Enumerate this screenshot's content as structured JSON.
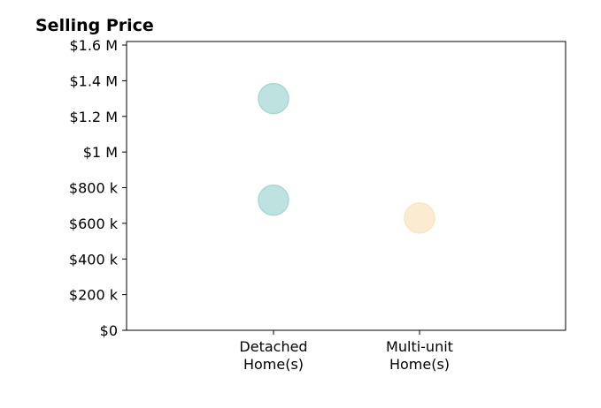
{
  "chart_data": {
    "type": "scatter",
    "title": "Selling Price",
    "xlabel": "",
    "ylabel": "",
    "categories": [
      [
        "Detached",
        "Home(s)"
      ],
      [
        "Multi-unit",
        "Home(s)"
      ]
    ],
    "ylim": [
      0,
      1620000
    ],
    "yticks": [
      0,
      200000,
      400000,
      600000,
      800000,
      1000000,
      1200000,
      1400000,
      1600000
    ],
    "ytick_labels": [
      "$0",
      "$200 k",
      "$400 k",
      "$600 k",
      "$800 k",
      "$1 M",
      "$1.2 M",
      "$1.4 M",
      "$1.6 M"
    ],
    "grid": false,
    "legend": "none",
    "points": [
      {
        "category": 0,
        "y": 1300000,
        "color": "#a8d8d4"
      },
      {
        "category": 0,
        "y": 730000,
        "color": "#a8d8d4"
      },
      {
        "category": 1,
        "y": 630000,
        "color": "#f9e6c2"
      }
    ]
  }
}
